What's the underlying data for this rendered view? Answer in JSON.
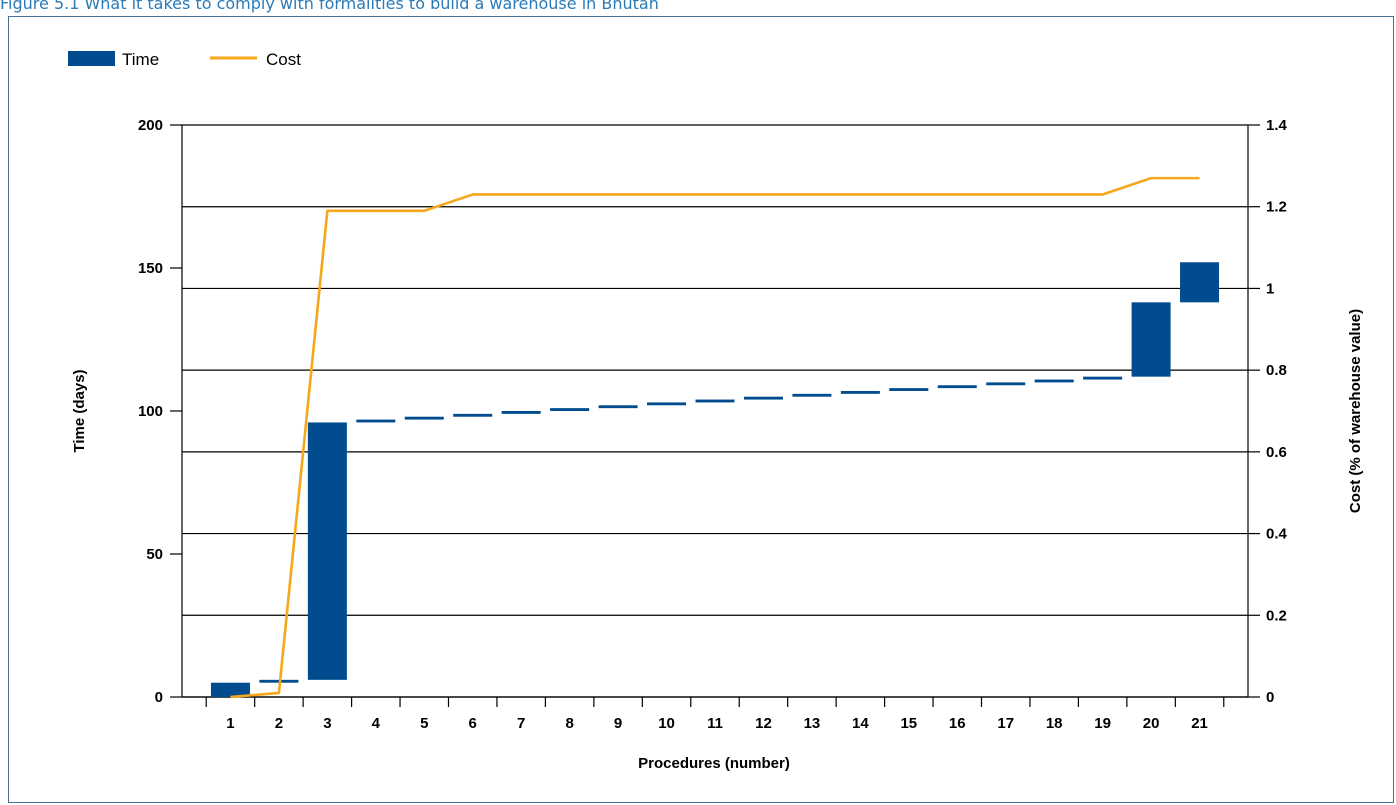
{
  "figure": {
    "title": "Figure 5.1 What it takes to comply with formalities to build a warehouse in Bhutan"
  },
  "colors": {
    "time": "#004c8f",
    "cost": "#f5a81c",
    "grid": "#000000",
    "title": "#2a7ab8"
  },
  "chart_data": {
    "type": "bar",
    "subtype": "waterfall-with-line",
    "categories": [
      "1",
      "2",
      "3",
      "4",
      "5",
      "6",
      "7",
      "8",
      "9",
      "10",
      "11",
      "12",
      "13",
      "14",
      "15",
      "16",
      "17",
      "18",
      "19",
      "20",
      "21"
    ],
    "xlabel": "Procedures (number)",
    "ylabel": "Time (days)",
    "y2label": "Cost (% of warehouse value)",
    "ylim": [
      0,
      200
    ],
    "y2lim": [
      0,
      1.4
    ],
    "yticks": [
      "0",
      "50",
      "100",
      "150",
      "200"
    ],
    "y2ticks": [
      "0",
      "0.2",
      "0.4",
      "0.6",
      "0.8",
      "1",
      "1.2",
      "1.4"
    ],
    "legend": {
      "placement": "top-left",
      "entries": [
        "Time",
        "Cost"
      ]
    },
    "grid": true,
    "series": [
      {
        "name": "Time",
        "kind": "floating-bar",
        "start": [
          0,
          5,
          6,
          96,
          97,
          98,
          99,
          100,
          101,
          102,
          103,
          104,
          105,
          106,
          107,
          108,
          109,
          110,
          111,
          112,
          138
        ],
        "end": [
          5,
          6,
          96,
          97,
          98,
          99,
          100,
          101,
          102,
          103,
          104,
          105,
          106,
          107,
          108,
          109,
          110,
          111,
          112,
          138,
          152
        ]
      },
      {
        "name": "Cost",
        "kind": "line",
        "values": [
          0,
          0.01,
          1.19,
          1.19,
          1.19,
          1.23,
          1.23,
          1.23,
          1.23,
          1.23,
          1.23,
          1.23,
          1.23,
          1.23,
          1.23,
          1.23,
          1.23,
          1.23,
          1.23,
          1.27,
          1.27
        ]
      }
    ]
  }
}
